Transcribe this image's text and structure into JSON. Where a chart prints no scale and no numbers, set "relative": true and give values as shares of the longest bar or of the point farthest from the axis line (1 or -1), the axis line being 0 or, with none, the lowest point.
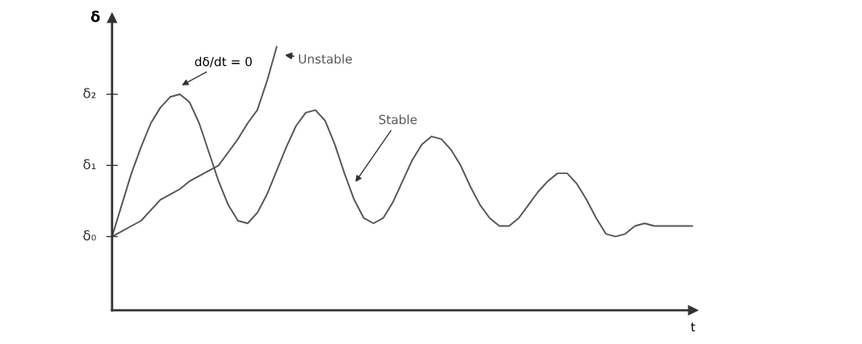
{
  "chart_data": {
    "type": "line",
    "relative": true,
    "xlabel": "t",
    "ylabel": "δ",
    "categories": [
      null,
      null,
      null,
      null,
      null,
      null,
      null,
      null,
      null,
      null,
      null,
      null,
      null,
      null,
      null,
      null,
      null,
      null,
      null,
      null,
      null,
      null,
      null,
      null,
      null,
      null,
      null,
      null,
      null,
      null,
      null,
      null,
      null,
      null,
      null,
      null,
      null,
      null,
      null,
      null,
      null,
      null,
      null,
      null,
      null,
      null,
      null,
      null,
      null,
      null,
      null,
      null,
      null,
      null,
      null,
      null,
      null,
      null,
      null,
      null,
      null
    ],
    "series": [
      {
        "name": "Unstable",
        "color": "#555555",
        "values": [
          0.28,
          0.3,
          0.32,
          0.34,
          0.38,
          0.42,
          0.44,
          0.46,
          0.49,
          0.51,
          0.53,
          0.55,
          0.6,
          0.65,
          0.71,
          0.76,
          0.87,
          1.0,
          null,
          null,
          null,
          null,
          null,
          null,
          null,
          null,
          null,
          null,
          null,
          null,
          null,
          null,
          null,
          null,
          null,
          null,
          null,
          null,
          null,
          null,
          null,
          null,
          null,
          null,
          null,
          null,
          null,
          null,
          null,
          null,
          null,
          null,
          null,
          null,
          null,
          null,
          null,
          null,
          null,
          null,
          null
        ]
      },
      {
        "name": "Stable",
        "color": "#555555",
        "values": [
          0.28,
          0.4,
          0.52,
          0.62,
          0.71,
          0.77,
          0.81,
          0.82,
          0.79,
          0.71,
          0.6,
          0.49,
          0.4,
          0.34,
          0.33,
          0.37,
          0.44,
          0.53,
          0.62,
          0.7,
          0.75,
          0.76,
          0.72,
          0.63,
          0.52,
          0.42,
          0.35,
          0.33,
          0.35,
          0.41,
          0.49,
          0.57,
          0.63,
          0.66,
          0.65,
          0.61,
          0.55,
          0.47,
          0.4,
          0.35,
          0.32,
          0.32,
          0.35,
          0.4,
          0.45,
          0.49,
          0.52,
          0.52,
          0.48,
          0.42,
          0.35,
          0.29,
          0.28,
          0.29,
          0.32,
          0.33,
          0.32,
          0.32,
          0.32,
          0.32,
          0.32
        ]
      }
    ],
    "annotations": [
      "dδ/dt = 0",
      "δ₀",
      "δ₁",
      "δ₂"
    ],
    "grid": false,
    "legend": false,
    "marker": "none",
    "line_style": "solid"
  }
}
